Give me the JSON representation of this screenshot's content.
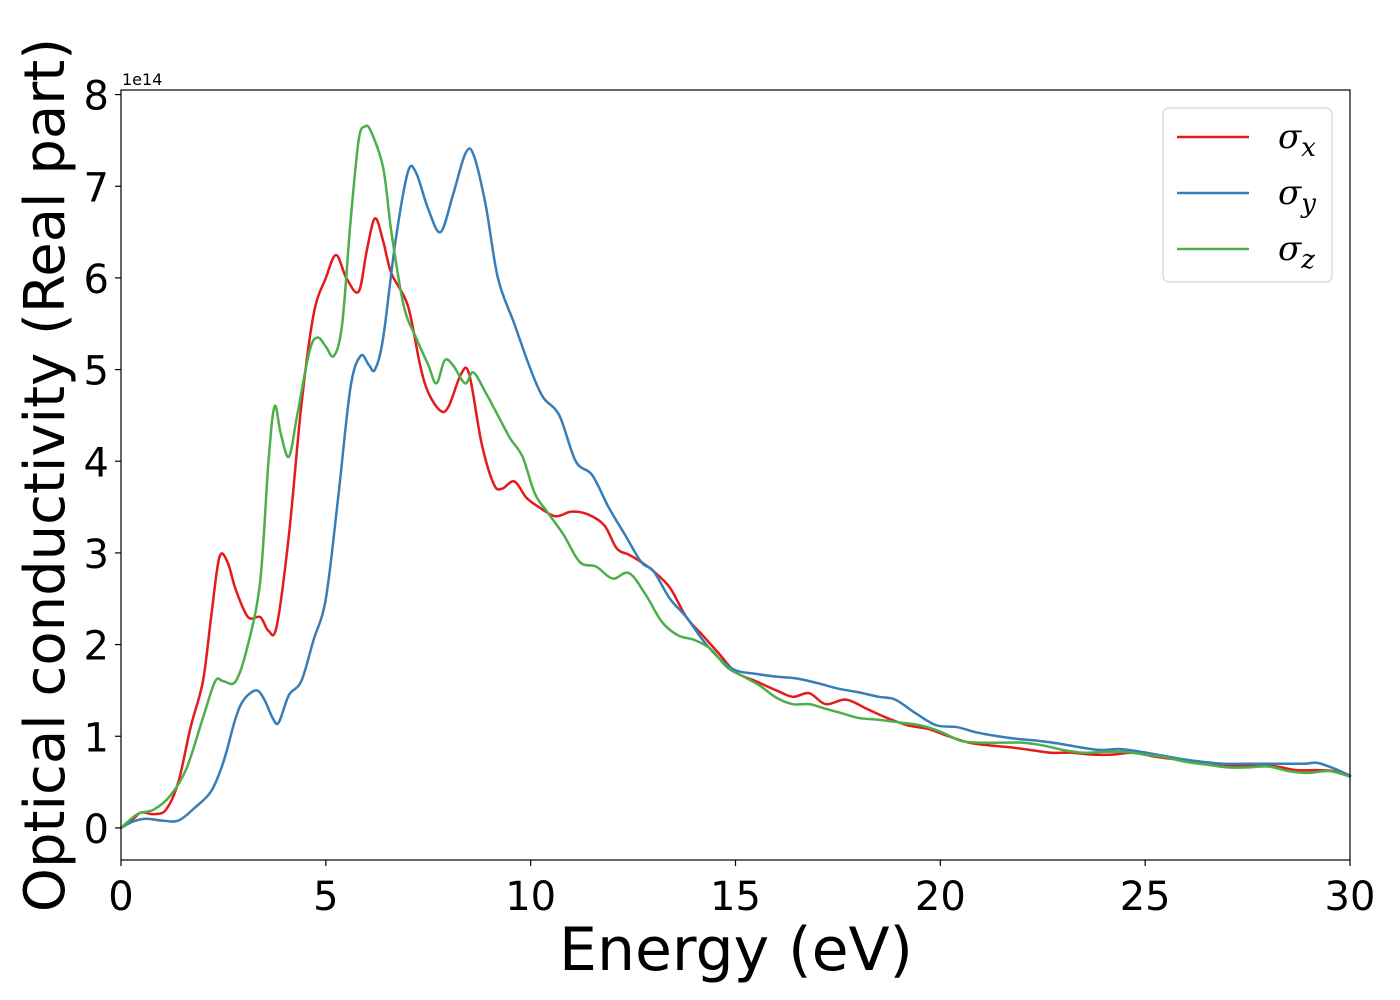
{
  "chart_data": {
    "type": "line",
    "title": "",
    "xlabel": "Energy (eV)",
    "ylabel": "Optical conductivity (Real part)",
    "y_scale_label": "1e14",
    "xlim": [
      0,
      30
    ],
    "ylim": [
      -0.35,
      8.05
    ],
    "xticks": [
      0,
      5,
      10,
      15,
      20,
      25,
      30
    ],
    "xtick_labels": [
      "0",
      "5",
      "10",
      "15",
      "20",
      "25",
      "30"
    ],
    "yticks": [
      0,
      1,
      2,
      3,
      4,
      5,
      6,
      7,
      8
    ],
    "ytick_labels": [
      "0",
      "1",
      "2",
      "3",
      "4",
      "5",
      "6",
      "7",
      "8"
    ],
    "grid": false,
    "legend_position": "top-right",
    "series": [
      {
        "name": "σ",
        "subscript": "x",
        "color": "#e41a1c",
        "points": [
          [
            0,
            0
          ],
          [
            0.3,
            0.1
          ],
          [
            0.5,
            0.17
          ],
          [
            0.8,
            0.15
          ],
          [
            1.1,
            0.2
          ],
          [
            1.4,
            0.5
          ],
          [
            1.7,
            1.1
          ],
          [
            2.0,
            1.6
          ],
          [
            2.2,
            2.3
          ],
          [
            2.4,
            2.95
          ],
          [
            2.6,
            2.9
          ],
          [
            2.8,
            2.6
          ],
          [
            3.1,
            2.3
          ],
          [
            3.4,
            2.3
          ],
          [
            3.6,
            2.15
          ],
          [
            3.8,
            2.2
          ],
          [
            4.1,
            3.2
          ],
          [
            4.4,
            4.6
          ],
          [
            4.7,
            5.6
          ],
          [
            5.0,
            6.0
          ],
          [
            5.25,
            6.25
          ],
          [
            5.5,
            6.0
          ],
          [
            5.8,
            5.85
          ],
          [
            6.0,
            6.3
          ],
          [
            6.2,
            6.65
          ],
          [
            6.4,
            6.4
          ],
          [
            6.6,
            6.05
          ],
          [
            7.0,
            5.7
          ],
          [
            7.3,
            5.05
          ],
          [
            7.5,
            4.75
          ],
          [
            7.8,
            4.55
          ],
          [
            8.0,
            4.6
          ],
          [
            8.3,
            4.95
          ],
          [
            8.5,
            4.95
          ],
          [
            8.8,
            4.2
          ],
          [
            9.1,
            3.75
          ],
          [
            9.3,
            3.7
          ],
          [
            9.6,
            3.78
          ],
          [
            9.9,
            3.6
          ],
          [
            10.2,
            3.5
          ],
          [
            10.6,
            3.4
          ],
          [
            11.0,
            3.45
          ],
          [
            11.4,
            3.42
          ],
          [
            11.8,
            3.3
          ],
          [
            12.1,
            3.05
          ],
          [
            12.4,
            2.98
          ],
          [
            12.7,
            2.9
          ],
          [
            13.0,
            2.8
          ],
          [
            13.4,
            2.62
          ],
          [
            13.8,
            2.3
          ],
          [
            14.2,
            2.1
          ],
          [
            14.6,
            1.9
          ],
          [
            15.0,
            1.7
          ],
          [
            15.5,
            1.6
          ],
          [
            16.0,
            1.5
          ],
          [
            16.4,
            1.43
          ],
          [
            16.8,
            1.47
          ],
          [
            17.2,
            1.35
          ],
          [
            17.7,
            1.4
          ],
          [
            18.2,
            1.3
          ],
          [
            18.7,
            1.2
          ],
          [
            19.2,
            1.12
          ],
          [
            19.7,
            1.08
          ],
          [
            20.2,
            1.0
          ],
          [
            20.7,
            0.93
          ],
          [
            21.2,
            0.9
          ],
          [
            21.7,
            0.88
          ],
          [
            22.2,
            0.85
          ],
          [
            22.7,
            0.82
          ],
          [
            23.2,
            0.82
          ],
          [
            23.7,
            0.8
          ],
          [
            24.2,
            0.8
          ],
          [
            24.7,
            0.82
          ],
          [
            25.2,
            0.78
          ],
          [
            25.7,
            0.75
          ],
          [
            26.2,
            0.73
          ],
          [
            26.7,
            0.7
          ],
          [
            27.2,
            0.68
          ],
          [
            27.7,
            0.68
          ],
          [
            28.2,
            0.67
          ],
          [
            28.7,
            0.63
          ],
          [
            29.2,
            0.63
          ],
          [
            29.6,
            0.62
          ],
          [
            30.0,
            0.57
          ]
        ]
      },
      {
        "name": "σ",
        "subscript": "y",
        "color": "#377eb8",
        "points": [
          [
            0,
            0
          ],
          [
            0.3,
            0.07
          ],
          [
            0.6,
            0.1
          ],
          [
            1.0,
            0.08
          ],
          [
            1.4,
            0.08
          ],
          [
            1.8,
            0.22
          ],
          [
            2.2,
            0.4
          ],
          [
            2.5,
            0.72
          ],
          [
            2.8,
            1.2
          ],
          [
            3.0,
            1.4
          ],
          [
            3.3,
            1.5
          ],
          [
            3.5,
            1.4
          ],
          [
            3.7,
            1.2
          ],
          [
            3.85,
            1.15
          ],
          [
            4.1,
            1.45
          ],
          [
            4.4,
            1.6
          ],
          [
            4.7,
            2.05
          ],
          [
            5.0,
            2.5
          ],
          [
            5.3,
            3.6
          ],
          [
            5.6,
            4.8
          ],
          [
            5.85,
            5.15
          ],
          [
            6.05,
            5.05
          ],
          [
            6.2,
            5.0
          ],
          [
            6.4,
            5.35
          ],
          [
            6.7,
            6.4
          ],
          [
            7.0,
            7.15
          ],
          [
            7.2,
            7.15
          ],
          [
            7.5,
            6.75
          ],
          [
            7.8,
            6.5
          ],
          [
            8.1,
            6.9
          ],
          [
            8.4,
            7.35
          ],
          [
            8.6,
            7.35
          ],
          [
            8.9,
            6.8
          ],
          [
            9.2,
            6.0
          ],
          [
            9.6,
            5.5
          ],
          [
            10.0,
            5.0
          ],
          [
            10.3,
            4.7
          ],
          [
            10.7,
            4.5
          ],
          [
            11.1,
            4.0
          ],
          [
            11.5,
            3.85
          ],
          [
            11.9,
            3.5
          ],
          [
            12.3,
            3.2
          ],
          [
            12.7,
            2.9
          ],
          [
            13.0,
            2.8
          ],
          [
            13.4,
            2.5
          ],
          [
            13.8,
            2.3
          ],
          [
            14.2,
            2.05
          ],
          [
            14.6,
            1.85
          ],
          [
            15.0,
            1.72
          ],
          [
            15.5,
            1.68
          ],
          [
            16.0,
            1.65
          ],
          [
            16.5,
            1.63
          ],
          [
            17.0,
            1.58
          ],
          [
            17.5,
            1.52
          ],
          [
            18.0,
            1.48
          ],
          [
            18.5,
            1.43
          ],
          [
            18.9,
            1.4
          ],
          [
            19.4,
            1.25
          ],
          [
            19.9,
            1.12
          ],
          [
            20.4,
            1.1
          ],
          [
            20.9,
            1.04
          ],
          [
            21.4,
            1.0
          ],
          [
            21.9,
            0.97
          ],
          [
            22.4,
            0.95
          ],
          [
            22.9,
            0.92
          ],
          [
            23.4,
            0.88
          ],
          [
            23.9,
            0.85
          ],
          [
            24.4,
            0.86
          ],
          [
            24.9,
            0.83
          ],
          [
            25.4,
            0.79
          ],
          [
            25.9,
            0.75
          ],
          [
            26.4,
            0.72
          ],
          [
            26.9,
            0.7
          ],
          [
            27.4,
            0.7
          ],
          [
            27.9,
            0.7
          ],
          [
            28.4,
            0.7
          ],
          [
            28.9,
            0.7
          ],
          [
            29.2,
            0.71
          ],
          [
            29.6,
            0.65
          ],
          [
            30.0,
            0.57
          ]
        ]
      },
      {
        "name": "σ",
        "subscript": "z",
        "color": "#4daf4a",
        "points": [
          [
            0,
            0
          ],
          [
            0.4,
            0.15
          ],
          [
            0.8,
            0.2
          ],
          [
            1.2,
            0.35
          ],
          [
            1.6,
            0.65
          ],
          [
            2.0,
            1.2
          ],
          [
            2.3,
            1.6
          ],
          [
            2.5,
            1.6
          ],
          [
            2.8,
            1.6
          ],
          [
            3.1,
            2.0
          ],
          [
            3.4,
            2.7
          ],
          [
            3.6,
            4.0
          ],
          [
            3.75,
            4.6
          ],
          [
            3.9,
            4.3
          ],
          [
            4.1,
            4.05
          ],
          [
            4.3,
            4.5
          ],
          [
            4.6,
            5.2
          ],
          [
            4.8,
            5.35
          ],
          [
            5.0,
            5.25
          ],
          [
            5.2,
            5.15
          ],
          [
            5.4,
            5.5
          ],
          [
            5.6,
            6.6
          ],
          [
            5.8,
            7.5
          ],
          [
            5.95,
            7.65
          ],
          [
            6.1,
            7.6
          ],
          [
            6.4,
            7.2
          ],
          [
            6.6,
            6.5
          ],
          [
            6.9,
            5.7
          ],
          [
            7.2,
            5.35
          ],
          [
            7.5,
            5.05
          ],
          [
            7.7,
            4.85
          ],
          [
            7.9,
            5.1
          ],
          [
            8.1,
            5.05
          ],
          [
            8.4,
            4.85
          ],
          [
            8.6,
            4.97
          ],
          [
            8.9,
            4.75
          ],
          [
            9.2,
            4.5
          ],
          [
            9.5,
            4.25
          ],
          [
            9.8,
            4.05
          ],
          [
            10.1,
            3.65
          ],
          [
            10.4,
            3.45
          ],
          [
            10.8,
            3.2
          ],
          [
            11.2,
            2.9
          ],
          [
            11.6,
            2.85
          ],
          [
            12.0,
            2.72
          ],
          [
            12.4,
            2.78
          ],
          [
            12.8,
            2.55
          ],
          [
            13.2,
            2.25
          ],
          [
            13.6,
            2.1
          ],
          [
            14.0,
            2.05
          ],
          [
            14.4,
            1.95
          ],
          [
            14.8,
            1.75
          ],
          [
            15.2,
            1.65
          ],
          [
            15.6,
            1.55
          ],
          [
            16.0,
            1.42
          ],
          [
            16.4,
            1.35
          ],
          [
            16.8,
            1.35
          ],
          [
            17.2,
            1.3
          ],
          [
            17.6,
            1.25
          ],
          [
            18.0,
            1.2
          ],
          [
            18.5,
            1.18
          ],
          [
            19.0,
            1.15
          ],
          [
            19.5,
            1.12
          ],
          [
            20.0,
            1.05
          ],
          [
            20.5,
            0.95
          ],
          [
            21.0,
            0.93
          ],
          [
            21.5,
            0.93
          ],
          [
            22.0,
            0.93
          ],
          [
            22.5,
            0.9
          ],
          [
            23.0,
            0.85
          ],
          [
            23.5,
            0.82
          ],
          [
            24.0,
            0.83
          ],
          [
            24.5,
            0.83
          ],
          [
            25.0,
            0.8
          ],
          [
            25.5,
            0.77
          ],
          [
            26.0,
            0.72
          ],
          [
            26.5,
            0.69
          ],
          [
            27.0,
            0.66
          ],
          [
            27.5,
            0.66
          ],
          [
            28.0,
            0.67
          ],
          [
            28.5,
            0.62
          ],
          [
            29.0,
            0.6
          ],
          [
            29.5,
            0.62
          ],
          [
            30.0,
            0.56
          ]
        ]
      }
    ]
  }
}
